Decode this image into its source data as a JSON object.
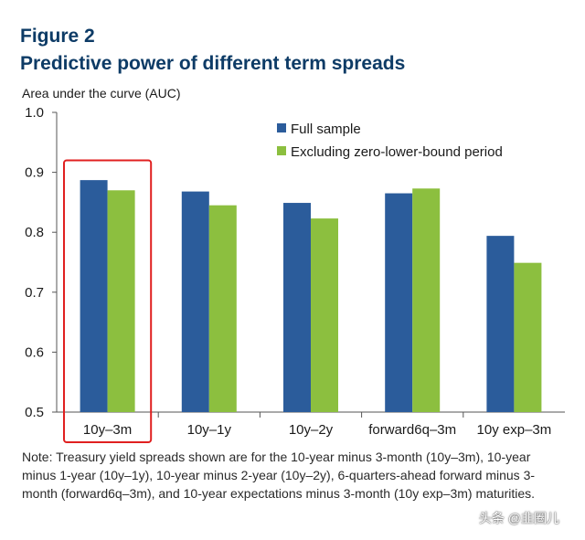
{
  "figure": {
    "label": "Figure 2",
    "title": "Predictive power of different term spreads",
    "note": "Note: Treasury yield spreads shown are for the 10-year minus 3-month (10y–3m), 10-year minus 1-year (10y–1y), 10-year minus 2-year (10y–2y), 6-quarters-ahead forward minus 3-month (forward6q–3m), and 10-year expectations minus 3-month (10y exp–3m) maturities.",
    "watermark": "头条 @韭圈儿"
  },
  "colors": {
    "full_sample": "#2b5c9b",
    "excluding_zlb": "#8cbf3f",
    "highlight": "#e02020",
    "axis": "#555555"
  },
  "chart_data": {
    "type": "bar",
    "ylabel": "Area under the curve (AUC)",
    "ylim": [
      0.5,
      1.0
    ],
    "yticks": [
      "0.5",
      "0.6",
      "0.7",
      "0.8",
      "0.9",
      "1.0"
    ],
    "categories": [
      "10y–3m",
      "10y–1y",
      "10y–2y",
      "forward6q–3m",
      "10y exp–3m"
    ],
    "series": [
      {
        "name": "Full sample",
        "values": [
          0.887,
          0.868,
          0.849,
          0.865,
          0.794
        ]
      },
      {
        "name": "Excluding zero-lower-bound period",
        "values": [
          0.87,
          0.845,
          0.823,
          0.873,
          0.749
        ]
      }
    ],
    "legend_position": "top-right",
    "highlighted_category": "10y–3m",
    "grid": false
  }
}
